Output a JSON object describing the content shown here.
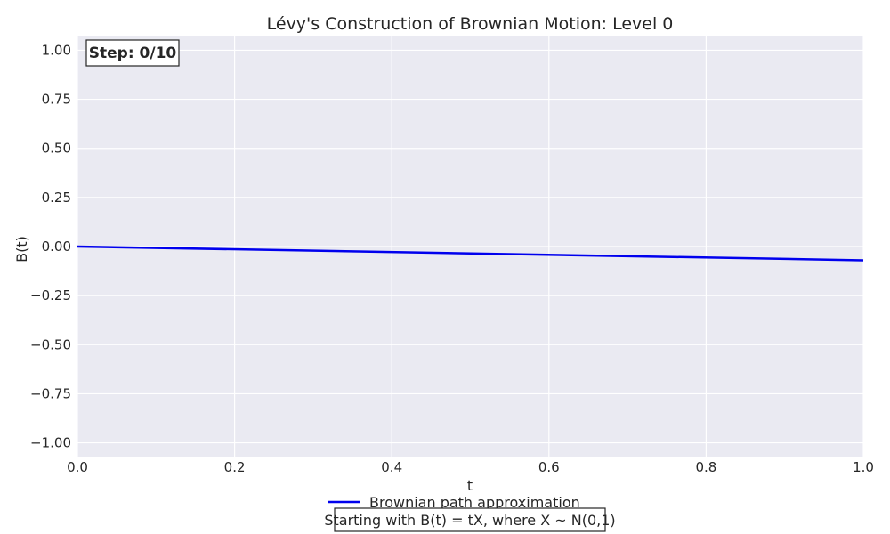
{
  "chart_data": {
    "type": "line",
    "title": "Lévy's Construction of Brownian Motion: Level 0",
    "xlabel": "t",
    "ylabel": "B(t)",
    "xlim": [
      0.0,
      1.0
    ],
    "ylim": [
      -1.07,
      1.07
    ],
    "x_ticks": [
      0.0,
      0.2,
      0.4,
      0.6,
      0.8,
      1.0
    ],
    "x_tick_labels": [
      "0.0",
      "0.2",
      "0.4",
      "0.6",
      "0.8",
      "1.0"
    ],
    "y_ticks": [
      1.0,
      0.75,
      0.5,
      0.25,
      0.0,
      -0.25,
      -0.5,
      -0.75,
      -1.0
    ],
    "y_tick_labels": [
      "1.00",
      "0.75",
      "0.50",
      "0.25",
      "0.00",
      "−0.25",
      "−0.50",
      "−0.75",
      "−1.00"
    ],
    "grid": true,
    "legend_position": "bottom-center",
    "series": [
      {
        "name": "Brownian path approximation",
        "color": "#0000ee",
        "x": [
          0.0,
          1.0
        ],
        "y": [
          0.0,
          -0.07
        ]
      }
    ],
    "annotations": {
      "step": "Step: 0/10",
      "caption": "Starting with B(t) = tX, where X ~ N(0,1)"
    },
    "colors": {
      "plot_background": "#eaeaf2",
      "grid": "#ffffff"
    }
  }
}
